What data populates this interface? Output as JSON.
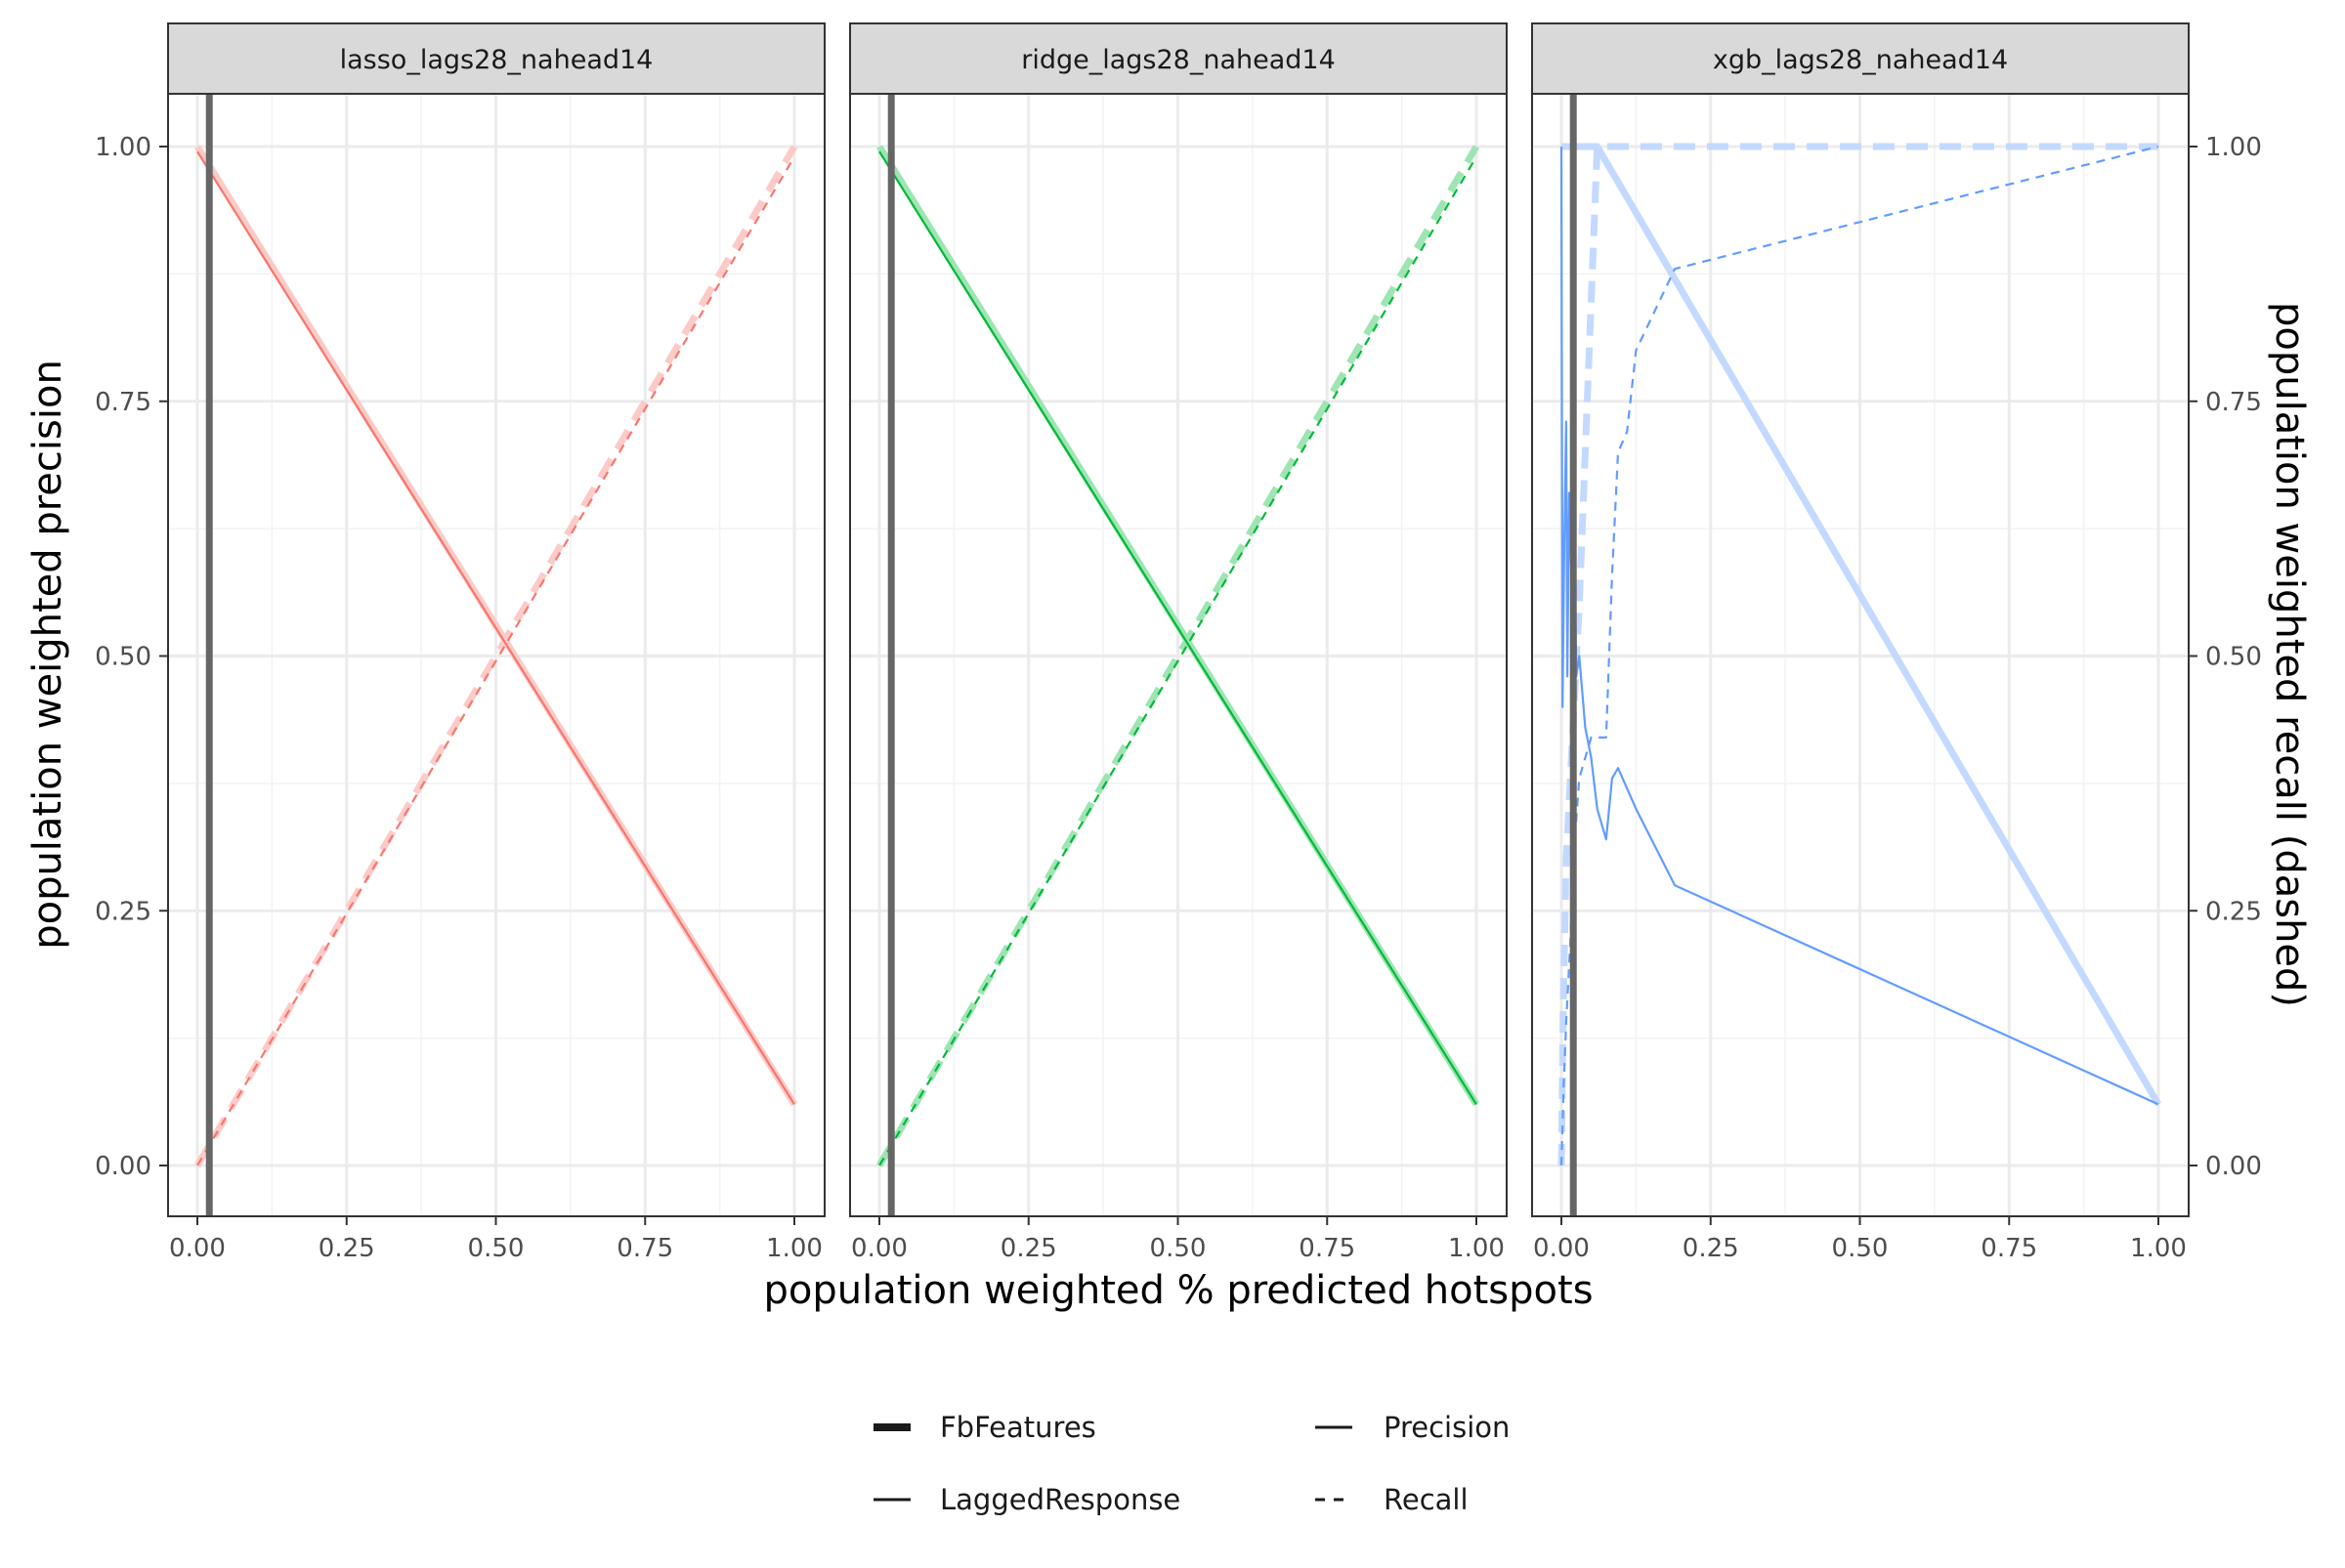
{
  "chart_data": {
    "type": "line",
    "facets": [
      {
        "label": "lasso_lags28_nahead14",
        "color": "#F8766D",
        "fb_threshold_x": 0.02,
        "lagged": {
          "precision": {
            "x": [
              0.0,
              1.0
            ],
            "y": [
              0.995,
              0.06
            ]
          },
          "recall": {
            "x": [
              0.0,
              1.0
            ],
            "y": [
              0.0,
              0.99
            ]
          }
        },
        "fb": {
          "precision": {
            "x": [
              0.0,
              1.0
            ],
            "y": [
              1.0,
              0.06
            ]
          },
          "recall": {
            "x": [
              0.0,
              1.0
            ],
            "y": [
              0.0,
              1.0
            ]
          }
        }
      },
      {
        "label": "ridge_lags28_nahead14",
        "color": "#00BA38",
        "fb_threshold_x": 0.02,
        "lagged": {
          "precision": {
            "x": [
              0.0,
              1.0
            ],
            "y": [
              0.995,
              0.06
            ]
          },
          "recall": {
            "x": [
              0.0,
              1.0
            ],
            "y": [
              0.0,
              0.99
            ]
          }
        },
        "fb": {
          "precision": {
            "x": [
              0.0,
              1.0
            ],
            "y": [
              1.0,
              0.06
            ]
          },
          "recall": {
            "x": [
              0.0,
              1.0
            ],
            "y": [
              0.0,
              1.0
            ]
          }
        }
      },
      {
        "label": "xgb_lags28_nahead14",
        "color": "#619CFF",
        "fb_threshold_x": 0.02,
        "lagged": {
          "precision": {
            "x": [
              0.0,
              0.002,
              0.005,
              0.008,
              0.01,
              0.013,
              0.016,
              0.02,
              0.025,
              0.03,
              0.04,
              0.05,
              0.06,
              0.075,
              0.085,
              0.095,
              0.11,
              0.125,
              0.19,
              1.0
            ],
            "y": [
              1.0,
              0.45,
              0.62,
              0.73,
              0.48,
              0.66,
              0.59,
              0.69,
              0.48,
              0.5,
              0.43,
              0.4,
              0.35,
              0.32,
              0.38,
              0.39,
              0.37,
              0.35,
              0.275,
              0.06
            ]
          },
          "recall": {
            "x": [
              0.0,
              0.004,
              0.008,
              0.015,
              0.02,
              0.03,
              0.05,
              0.075,
              0.085,
              0.095,
              0.11,
              0.125,
              0.19,
              1.0
            ],
            "y": [
              0.0,
              0.08,
              0.14,
              0.22,
              0.3,
              0.38,
              0.42,
              0.42,
              0.58,
              0.7,
              0.72,
              0.8,
              0.88,
              1.0
            ]
          }
        },
        "fb": {
          "precision": {
            "x": [
              0.0,
              0.06,
              1.0
            ],
            "y": [
              1.0,
              1.0,
              0.06
            ]
          },
          "recall": {
            "x": [
              0.0,
              0.003,
              0.008,
              0.03,
              0.06,
              1.0
            ],
            "y": [
              0.0,
              0.15,
              0.3,
              0.55,
              1.0,
              1.0
            ]
          }
        }
      }
    ],
    "xlabel": "population weighted % predicted hotspots",
    "ylabel": "population weighted precision",
    "ylabel_right": "population weighted recall (dashed)",
    "xlim": [
      0,
      1
    ],
    "ylim": [
      0,
      1
    ],
    "x_ticks": [
      "0.00",
      "0.25",
      "0.50",
      "0.75",
      "1.00"
    ],
    "y_ticks": [
      "0.00",
      "0.25",
      "0.50",
      "0.75",
      "1.00"
    ],
    "grid": true,
    "legend_position": "bottom",
    "legend": {
      "fill_items": [
        {
          "label": "FbFeatures",
          "key": "fb"
        },
        {
          "label": "LaggedResponse",
          "key": "lagged"
        }
      ],
      "linetype_items": [
        {
          "label": "Precision",
          "key": "precision"
        },
        {
          "label": "Recall",
          "key": "recall"
        }
      ]
    }
  }
}
